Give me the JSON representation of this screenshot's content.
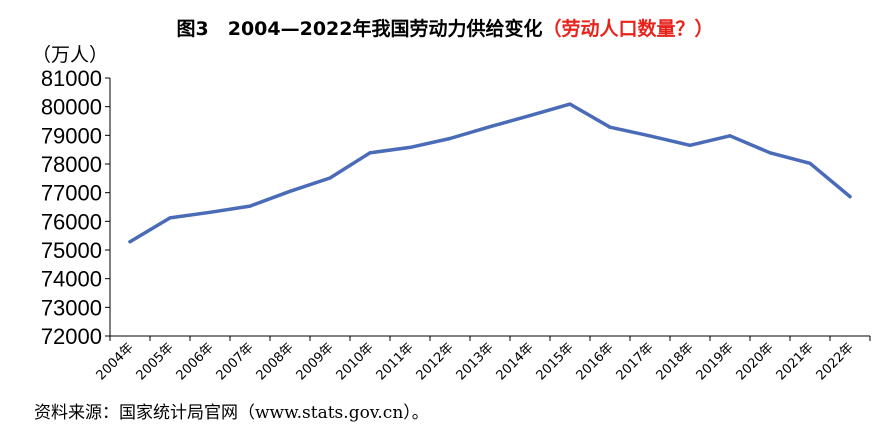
{
  "title": {
    "main": "图3　2004—2022年我国劳动力供给变化",
    "highlight": "（劳动人口数量？）"
  },
  "source": "资料来源：国家统计局官网（www.stats.gov.cn）。",
  "colors": {
    "line": "#4a6bb8",
    "highlight": "#e8231c",
    "axis": "#000000"
  },
  "chart_data": {
    "type": "line",
    "title": "图3　2004—2022年我国劳动力供给变化（劳动人口数量？）",
    "ylabel": "（万人）",
    "xlabel": "",
    "ylim": [
      72000,
      81000
    ],
    "yticks": [
      72000,
      73000,
      74000,
      75000,
      76000,
      77000,
      78000,
      79000,
      80000,
      81000
    ],
    "grid": false,
    "legend": "none",
    "categories": [
      "2004年",
      "2005年",
      "2006年",
      "2007年",
      "2008年",
      "2009年",
      "2010年",
      "2011年",
      "2012年",
      "2013年",
      "2014年",
      "2015年",
      "2016年",
      "2017年",
      "2018年",
      "2019年",
      "2020年",
      "2021年",
      "2022年"
    ],
    "series": [
      {
        "values": [
          75290,
          76120,
          76315,
          76530,
          77046,
          77510,
          78390,
          78580,
          78890,
          79300,
          79690,
          80091,
          79282,
          78980,
          78653,
          78985,
          78392,
          78024,
          76863
        ]
      }
    ]
  }
}
